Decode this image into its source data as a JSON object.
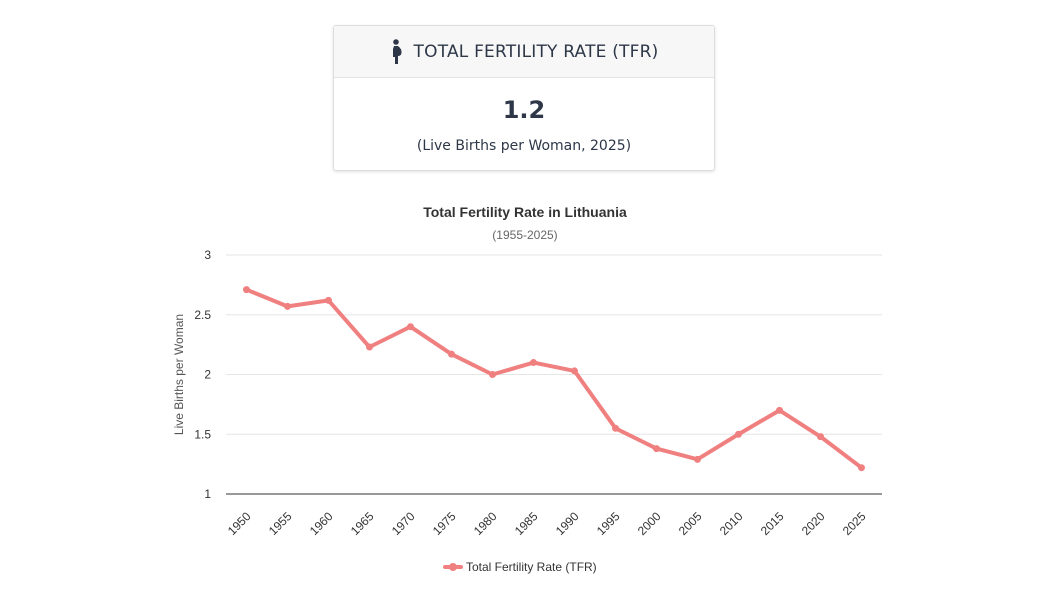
{
  "card": {
    "title": "TOTAL FERTILITY RATE (TFR)",
    "icon": "pregnant-woman-icon",
    "value": "1.2",
    "subtitle": "(Live Births per Woman, 2025)"
  },
  "chart_data": {
    "type": "line",
    "title": "Total Fertility Rate in Lithuania",
    "subtitle": "(1955-2025)",
    "xlabel": "",
    "ylabel": "Live Births per Woman",
    "ylim": [
      1,
      3
    ],
    "yticks": [
      "1",
      "1.5",
      "2",
      "2.5",
      "3"
    ],
    "categories": [
      "1950",
      "1955",
      "1960",
      "1965",
      "1970",
      "1975",
      "1980",
      "1985",
      "1990",
      "1995",
      "2000",
      "2005",
      "2010",
      "2015",
      "2020",
      "2025"
    ],
    "series": [
      {
        "name": "Total Fertility Rate (TFR)",
        "color": "#f08080",
        "values": [
          2.71,
          2.57,
          2.62,
          2.23,
          2.4,
          2.17,
          2.0,
          2.1,
          2.03,
          1.55,
          1.38,
          1.29,
          1.5,
          1.7,
          1.48,
          1.22
        ]
      }
    ],
    "grid": true,
    "legend": "bottom-center"
  }
}
